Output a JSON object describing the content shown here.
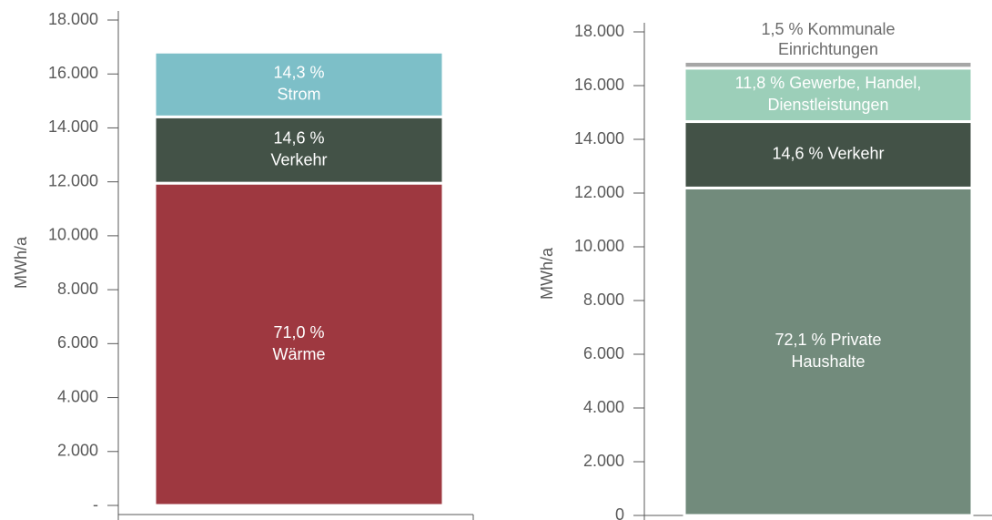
{
  "chart_data": [
    {
      "type": "bar",
      "ylabel": "MWh/a",
      "categories": [
        null
      ],
      "ylim": [
        0,
        18000
      ],
      "yticks": [
        {
          "value": 0,
          "label": "-"
        },
        {
          "value": 2000,
          "label": "2.000"
        },
        {
          "value": 4000,
          "label": "4.000"
        },
        {
          "value": 6000,
          "label": "6.000"
        },
        {
          "value": 8000,
          "label": "8.000"
        },
        {
          "value": 10000,
          "label": "10.000"
        },
        {
          "value": 12000,
          "label": "12.000"
        },
        {
          "value": 14000,
          "label": "14.000"
        },
        {
          "value": 16000,
          "label": "16.000"
        },
        {
          "value": 18000,
          "label": "18.000"
        }
      ],
      "series": [
        {
          "label_lines": [
            "71,0 %",
            "Wärme"
          ],
          "color": "#9e3840",
          "values": [
            11950
          ]
        },
        {
          "label_lines": [
            "14,6 %",
            "Verkehr"
          ],
          "color": "#435247",
          "values": [
            2460
          ]
        },
        {
          "label_lines": [
            "14,3 %",
            "Strom"
          ],
          "color": "#7dbfc8",
          "values": [
            2400
          ]
        }
      ]
    },
    {
      "type": "bar",
      "ylabel": "MWh/a",
      "categories": [
        null
      ],
      "ylim": [
        0,
        18000
      ],
      "yticks": [
        0,
        {
          "value": 2000,
          "label": "2.000"
        },
        {
          "value": 4000,
          "label": "4.000"
        },
        {
          "value": 6000,
          "label": "6.000"
        },
        {
          "value": 8000,
          "label": "8.000"
        },
        {
          "value": 10000,
          "label": "10.000"
        },
        {
          "value": 12000,
          "label": "12.000"
        },
        {
          "value": 14000,
          "label": "14.000"
        },
        {
          "value": 16000,
          "label": "16.000"
        },
        {
          "value": 18000,
          "label": "18.000"
        }
      ],
      "series": [
        {
          "label_lines": [
            "72,1 % Private",
            "Haushalte"
          ],
          "color": "#728b7c",
          "values": [
            12190
          ]
        },
        {
          "label_lines": [
            "14,6 % Verkehr"
          ],
          "color": "#435247",
          "values": [
            2470
          ]
        },
        {
          "label_lines": [
            "11,8 % Gewerbe, Handel,",
            "Dienstleistungen"
          ],
          "color": "#9ccfb9",
          "values": [
            1990
          ]
        },
        {
          "label_lines": [
            "1,5 % Kommunale",
            "Einrichtungen"
          ],
          "color": "#a6a6a6",
          "values": [
            250
          ]
        }
      ]
    }
  ]
}
